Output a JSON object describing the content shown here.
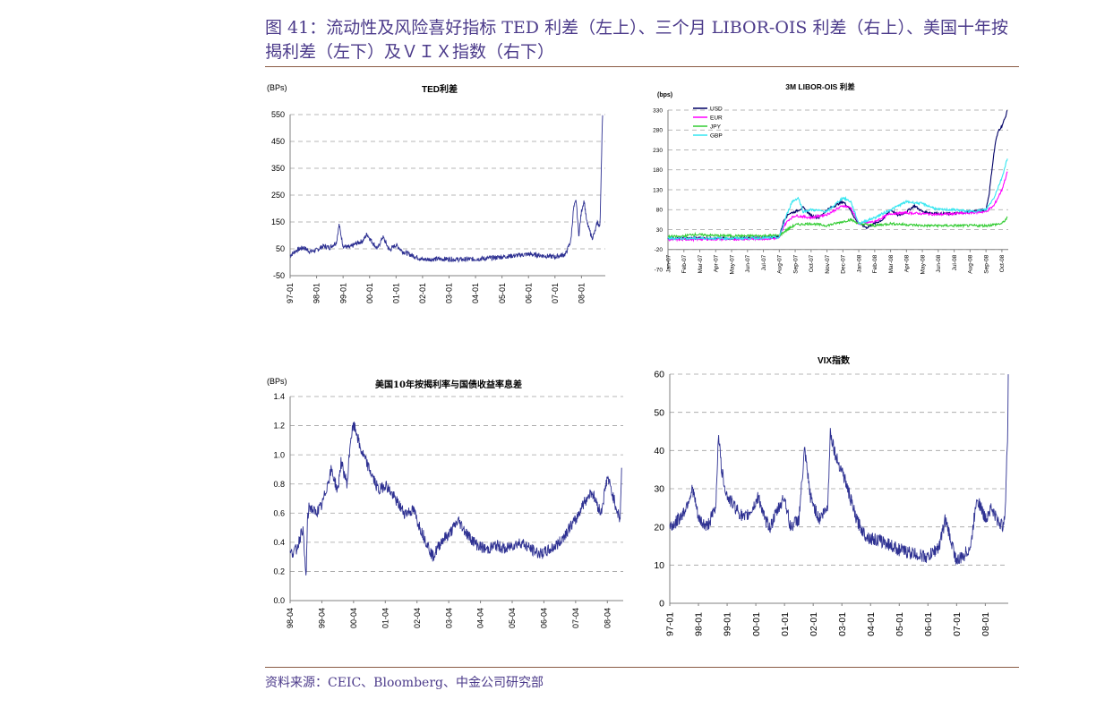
{
  "header": {
    "title_line1": "图 41：流动性及风险喜好指标 TED 利差（左上）、三个月 LIBOR-OIS 利差（右上）、美国十年按",
    "title_line2": "揭利差（左下）及ＶＩＸ指数（右下）"
  },
  "footer": {
    "source": "资料来源：CEIC、Bloomberg、中金公司研究部"
  },
  "chart_data": [
    {
      "id": "ted",
      "type": "line",
      "title": "TED利差",
      "unit_label": "(BPs)",
      "ylim": [
        -50,
        550
      ],
      "y_ticks": [
        -50,
        50,
        150,
        250,
        350,
        450,
        550
      ],
      "x_ticks": [
        "97-01",
        "98-01",
        "99-01",
        "00-01",
        "01-01",
        "02-01",
        "03-01",
        "04-01",
        "05-01",
        "06-01",
        "07-01",
        "08-01"
      ],
      "grid": true,
      "series": [
        {
          "color": "#2e3192",
          "x": [
            1997.0,
            1997.25,
            1997.5,
            1997.75,
            1998.0,
            1998.25,
            1998.5,
            1998.75,
            1998.85,
            1999.0,
            1999.25,
            1999.5,
            1999.75,
            1999.9,
            2000.1,
            2000.3,
            2000.5,
            2000.75,
            2001.0,
            2001.25,
            2001.5,
            2001.75,
            2002.0,
            2002.5,
            2003.0,
            2003.5,
            2004.0,
            2004.5,
            2005.0,
            2005.5,
            2006.0,
            2006.5,
            2007.0,
            2007.4,
            2007.6,
            2007.7,
            2007.8,
            2007.9,
            2008.0,
            2008.1,
            2008.2,
            2008.3,
            2008.4,
            2008.5,
            2008.6,
            2008.7,
            2008.78,
            2008.8
          ],
          "values": [
            25,
            45,
            55,
            40,
            45,
            60,
            55,
            75,
            140,
            60,
            55,
            70,
            80,
            105,
            75,
            50,
            95,
            45,
            65,
            40,
            30,
            20,
            10,
            12,
            12,
            10,
            12,
            15,
            20,
            25,
            30,
            25,
            20,
            30,
            80,
            200,
            230,
            100,
            190,
            230,
            150,
            120,
            90,
            110,
            150,
            130,
            500,
            540
          ]
        }
      ]
    },
    {
      "id": "libor_ois",
      "type": "line",
      "title": "3M LIBOR-OIS 利差",
      "unit_label": "(bps)",
      "ylim": [
        -70,
        330
      ],
      "y_ticks": [
        -70,
        -20,
        30,
        80,
        130,
        180,
        230,
        280,
        330
      ],
      "x_ticks": [
        "Jan-07",
        "Feb-07",
        "Mar-07",
        "Apr-07",
        "May-07",
        "Jun-07",
        "Jul-07",
        "Aug-07",
        "Sep-07",
        "Oct-07",
        "Nov-07",
        "Dec-07",
        "Jan-08",
        "Feb-08",
        "Mar-08",
        "Apr-08",
        "May-08",
        "Jun-08",
        "Jul-08",
        "Aug-08",
        "Sep-08",
        "Oct-08"
      ],
      "legend": [
        "USD",
        "EUR",
        "JPY",
        "GBP"
      ],
      "grid": true,
      "series": [
        {
          "name": "USD",
          "color": "#000066",
          "x": [
            0,
            1,
            2,
            3,
            4,
            5,
            6,
            7,
            7.3,
            7.6,
            8,
            8.5,
            9,
            9.5,
            10,
            10.5,
            11,
            11.4,
            11.8,
            12,
            12.5,
            13,
            13.5,
            14,
            14.5,
            15,
            15.5,
            16,
            17,
            18,
            19,
            19.5,
            20,
            20.2,
            20.4,
            20.6,
            20.8,
            21,
            21.2,
            21.35
          ],
          "values": [
            8,
            8,
            9,
            8,
            8,
            9,
            10,
            12,
            55,
            70,
            75,
            85,
            65,
            60,
            80,
            90,
            100,
            85,
            55,
            45,
            35,
            45,
            55,
            80,
            65,
            75,
            90,
            75,
            70,
            70,
            75,
            78,
            80,
            120,
            190,
            250,
            280,
            290,
            310,
            330
          ]
        },
        {
          "name": "EUR",
          "color": "#ff00ff",
          "x": [
            0,
            2,
            4,
            6,
            7,
            7.3,
            7.6,
            8,
            9,
            10,
            11,
            11.5,
            12,
            13,
            14,
            15,
            16,
            17,
            18,
            19,
            20,
            20.5,
            21,
            21.35
          ],
          "values": [
            5,
            6,
            6,
            7,
            8,
            40,
            55,
            65,
            60,
            68,
            90,
            85,
            45,
            50,
            70,
            72,
            70,
            68,
            70,
            72,
            75,
            90,
            130,
            175
          ]
        },
        {
          "name": "JPY",
          "color": "#33cc33",
          "x": [
            0,
            1,
            1.5,
            3,
            5,
            6.5,
            7,
            7.5,
            8,
            9,
            10,
            11,
            11.5,
            12,
            13,
            14,
            16,
            18,
            20,
            21,
            21.35
          ],
          "values": [
            12,
            13,
            18,
            15,
            14,
            15,
            15,
            30,
            42,
            45,
            40,
            50,
            55,
            45,
            40,
            45,
            40,
            40,
            40,
            45,
            60
          ]
        },
        {
          "name": "GBP",
          "color": "#33e6f0",
          "x": [
            0,
            2,
            4,
            6,
            7,
            7.4,
            7.8,
            8.2,
            8.5,
            9,
            10,
            11,
            11.5,
            12,
            13,
            14,
            15,
            16,
            17,
            18,
            19,
            20,
            20.5,
            21,
            21.35
          ],
          "values": [
            8,
            8,
            8,
            9,
            10,
            60,
            100,
            110,
            75,
            80,
            75,
            110,
            100,
            45,
            60,
            80,
            100,
            95,
            80,
            80,
            75,
            80,
            110,
            160,
            210
          ]
        }
      ]
    },
    {
      "id": "mortgage_spread",
      "type": "line",
      "title": "美国10年按揭利率与国债收益率息差",
      "unit_label": "(BPs)",
      "ylim": [
        0,
        1.4
      ],
      "y_ticks": [
        "0.0",
        "0.2",
        "0.4",
        "0.6",
        "0.8",
        "1.0",
        "1.2",
        "1.4"
      ],
      "x_ticks": [
        "98-04",
        "99-04",
        "00-04",
        "01-04",
        "02-04",
        "03-04",
        "04-04",
        "05-04",
        "06-04",
        "07-04",
        "08-04"
      ],
      "grid": true,
      "series": [
        {
          "color": "#2e3192",
          "x": [
            0,
            0.2,
            0.4,
            0.5,
            0.55,
            0.6,
            0.8,
            1.0,
            1.3,
            1.5,
            1.6,
            1.8,
            1.9,
            2.0,
            2.1,
            2.2,
            2.4,
            2.6,
            2.8,
            3.0,
            3.3,
            3.6,
            3.9,
            4.0,
            4.2,
            4.5,
            4.8,
            5.0,
            5.3,
            5.6,
            5.9,
            6.2,
            6.5,
            6.8,
            7.0,
            7.3,
            7.6,
            7.9,
            8.2,
            8.5,
            8.8,
            9.0,
            9.2,
            9.5,
            9.8,
            10.0,
            10.2,
            10.4,
            10.45
          ],
          "values": [
            0.32,
            0.35,
            0.5,
            0.15,
            0.55,
            0.65,
            0.6,
            0.65,
            0.9,
            0.75,
            0.95,
            0.8,
            1.1,
            1.2,
            1.15,
            1.05,
            0.95,
            0.85,
            0.75,
            0.8,
            0.7,
            0.6,
            0.62,
            0.55,
            0.45,
            0.3,
            0.42,
            0.45,
            0.55,
            0.45,
            0.38,
            0.35,
            0.38,
            0.35,
            0.38,
            0.4,
            0.35,
            0.32,
            0.35,
            0.4,
            0.5,
            0.55,
            0.65,
            0.75,
            0.6,
            0.85,
            0.7,
            0.55,
            0.9
          ]
        }
      ]
    },
    {
      "id": "vix",
      "type": "line",
      "title": "VIX指数",
      "ylim": [
        0,
        60
      ],
      "y_ticks": [
        0,
        10,
        20,
        30,
        40,
        50,
        60
      ],
      "x_ticks": [
        "97-01",
        "98-01",
        "99-01",
        "00-01",
        "01-01",
        "02-01",
        "03-01",
        "04-01",
        "05-01",
        "06-01",
        "07-01",
        "08-01"
      ],
      "grid": true,
      "series": [
        {
          "color": "#2e3192",
          "x": [
            1997.0,
            1997.2,
            1997.5,
            1997.8,
            1998.0,
            1998.3,
            1998.6,
            1998.7,
            1998.8,
            1999.0,
            1999.3,
            1999.6,
            1999.9,
            2000.1,
            2000.3,
            2000.5,
            2000.8,
            2001.0,
            2001.2,
            2001.5,
            2001.7,
            2001.9,
            2002.2,
            2002.5,
            2002.6,
            2002.8,
            2003.0,
            2003.2,
            2003.5,
            2003.8,
            2004.0,
            2004.5,
            2005.0,
            2005.5,
            2006.0,
            2006.4,
            2006.6,
            2007.0,
            2007.2,
            2007.5,
            2007.7,
            2008.0,
            2008.2,
            2008.4,
            2008.6,
            2008.7,
            2008.78,
            2008.8
          ],
          "values": [
            20,
            21,
            24,
            30,
            22,
            20,
            25,
            45,
            35,
            28,
            25,
            22,
            25,
            28,
            22,
            20,
            25,
            28,
            20,
            22,
            40,
            28,
            22,
            25,
            45,
            38,
            35,
            30,
            22,
            18,
            17,
            16,
            14,
            13,
            12,
            15,
            22,
            11,
            12,
            15,
            28,
            22,
            25,
            22,
            20,
            25,
            45,
            60
          ]
        }
      ]
    }
  ]
}
